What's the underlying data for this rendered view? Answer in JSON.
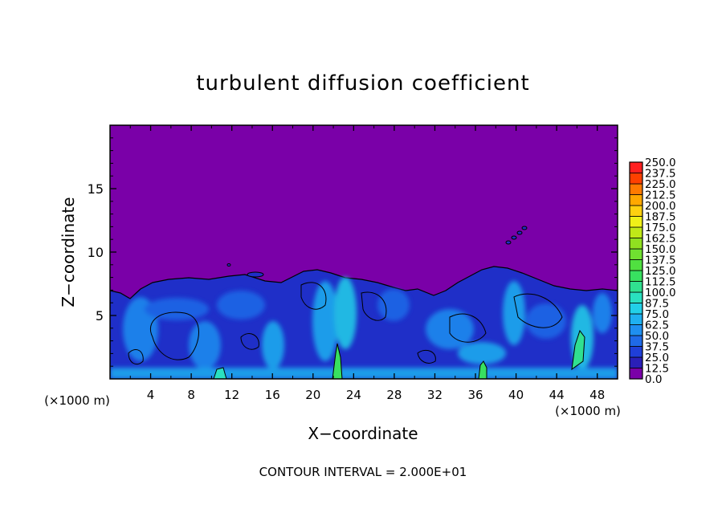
{
  "chart_data": {
    "type": "heatmap",
    "title": "turbulent diffusion coefficient",
    "xlabel": "X−coordinate",
    "ylabel": "Z−coordinate",
    "x_unit_label": "(×1000 m)",
    "z_unit_label": "(×1000 m)",
    "xlim": [
      0,
      50
    ],
    "ylim": [
      0,
      20
    ],
    "x_ticks": [
      4,
      8,
      12,
      16,
      20,
      24,
      28,
      32,
      36,
      40,
      44,
      48
    ],
    "y_ticks": [
      5,
      10,
      15
    ],
    "colorbar_levels": [
      "0.0",
      "12.5",
      "25.0",
      "37.5",
      "50.0",
      "62.5",
      "75.0",
      "87.5",
      "100.0",
      "112.5",
      "125.0",
      "137.5",
      "150.0",
      "162.5",
      "175.0",
      "187.5",
      "200.0",
      "212.5",
      "225.0",
      "237.5",
      "250.0"
    ],
    "colorbar_colors": [
      "#7a00a8",
      "#2a1fb8",
      "#1f3fd8",
      "#1f6ae8",
      "#1f8ff0",
      "#1fb0f0",
      "#22d0e8",
      "#2ae0c0",
      "#30e090",
      "#38e060",
      "#50e040",
      "#70e030",
      "#90e020",
      "#c0e818",
      "#f0f018",
      "#ffd010",
      "#ffa800",
      "#ff7a00",
      "#ff4000",
      "#ff2020",
      "#ff8080"
    ],
    "background_color": "#7a00a8",
    "contour_interval_text": "CONTOUR INTERVAL = 2.000E+01"
  }
}
